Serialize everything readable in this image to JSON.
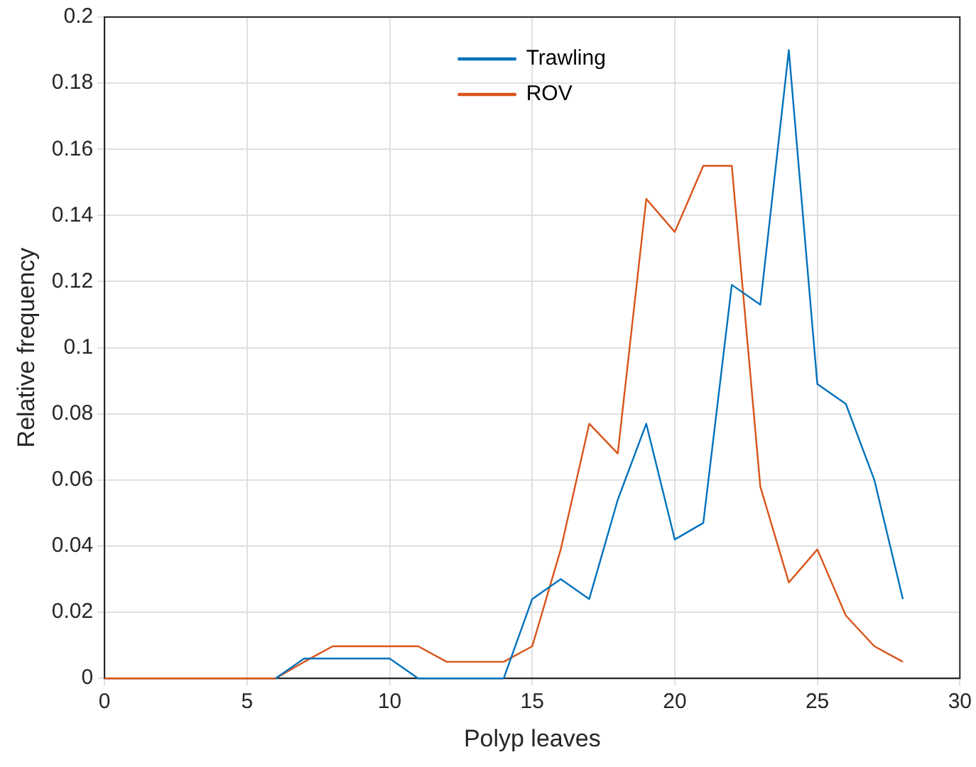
{
  "chart_data": {
    "type": "line",
    "xlabel": "Polyp leaves",
    "ylabel": "Relative frequency",
    "x": [
      0,
      1,
      2,
      3,
      4,
      5,
      6,
      7,
      8,
      9,
      10,
      11,
      12,
      13,
      14,
      15,
      16,
      17,
      18,
      19,
      20,
      21,
      22,
      23,
      24,
      25,
      26,
      27,
      28
    ],
    "series": [
      {
        "name": "Trawling",
        "color": "#0072bd",
        "values": [
          null,
          null,
          null,
          null,
          null,
          null,
          0,
          0.006,
          0.006,
          0.006,
          0.006,
          0,
          0,
          0,
          0,
          0.024,
          0.03,
          0.024,
          0.054,
          0.077,
          0.042,
          0.047,
          0.119,
          0.113,
          0.19,
          0.089,
          0.083,
          0.06,
          0.024
        ]
      },
      {
        "name": "ROV",
        "color": "#d95319",
        "values": [
          0,
          0,
          0,
          0,
          0,
          0,
          0,
          0.005,
          0.0097,
          0.0097,
          0.0097,
          0.0097,
          0.005,
          0.005,
          0.005,
          0.0097,
          0.039,
          0.077,
          0.068,
          0.145,
          0.135,
          0.155,
          0.155,
          0.058,
          0.029,
          0.039,
          0.019,
          0.0097,
          0.005
        ]
      }
    ],
    "xlim": [
      0,
      30
    ],
    "xticks": [
      0,
      5,
      10,
      15,
      20,
      25,
      30
    ],
    "ylim": [
      0,
      0.2
    ],
    "yticks": [
      0,
      0.02,
      0.04,
      0.06,
      0.08,
      0.1,
      0.12,
      0.14,
      0.16,
      0.18,
      0.2
    ],
    "grid": true,
    "legend": "top",
    "marker": "none",
    "line_style": "solid"
  }
}
